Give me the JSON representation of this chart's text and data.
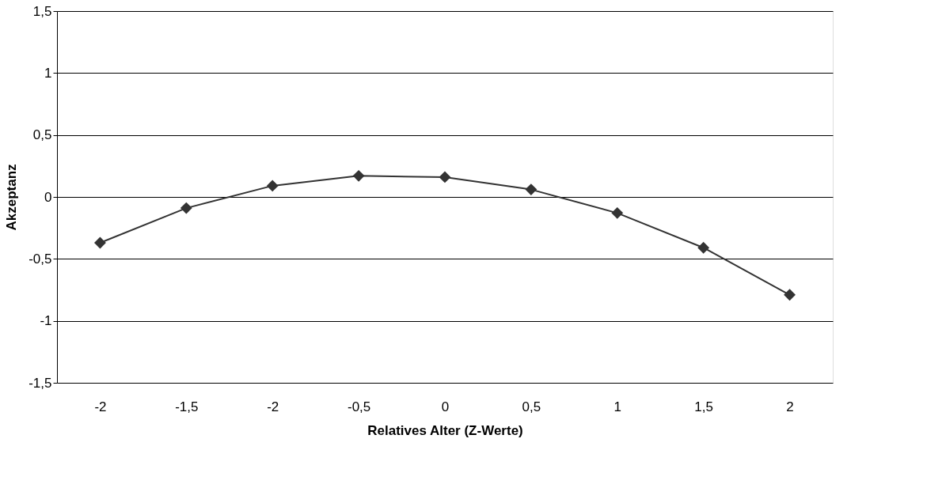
{
  "chart_data": {
    "type": "line",
    "xlabel": "Relatives Alter (Z-Werte)",
    "ylabel": "Akzeptanz",
    "categories": [
      "-2",
      "-1,5",
      "-2",
      "-0,5",
      "0",
      "0,5",
      "1",
      "1,5",
      "2"
    ],
    "series": [
      {
        "color": "#333333",
        "values": [
          -0.37,
          -0.09,
          0.09,
          0.17,
          0.16,
          0.06,
          -0.13,
          -0.41,
          -0.79
        ]
      }
    ],
    "ylim": [
      -1.5,
      1.5
    ],
    "yticks": [
      {
        "value": -1.5,
        "label": "-1,5"
      },
      {
        "value": -1,
        "label": "-1"
      },
      {
        "value": -0.5,
        "label": "-0,5"
      },
      {
        "value": 0,
        "label": "0"
      },
      {
        "value": 0.5,
        "label": "0,5"
      },
      {
        "value": 1,
        "label": "1"
      },
      {
        "value": 1.5,
        "label": "1,5"
      }
    ],
    "grid": "y",
    "marker": "diamond",
    "line_style": "solid"
  }
}
